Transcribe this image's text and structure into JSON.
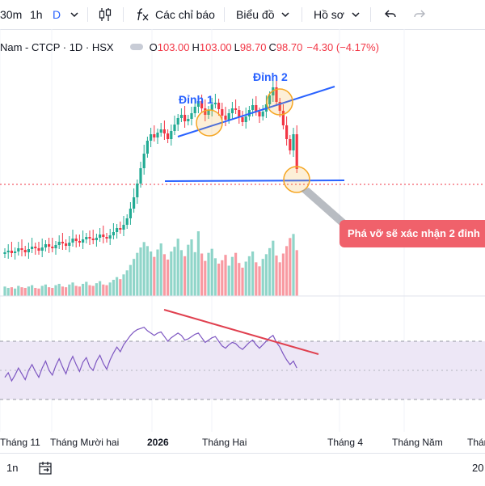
{
  "toolbar": {
    "intervals": [
      "30m",
      "1h",
      "D"
    ],
    "indicators_label": "Các chỉ báo",
    "chart_type_label": "Biểu đồ",
    "profile_label": "Hồ sơ"
  },
  "legend": {
    "symbol": "Nam - CTCP · 1D · HSX",
    "open_key": "O",
    "open": "103.00",
    "high_key": "H",
    "high": "103.00",
    "low_key": "L",
    "low": "98.70",
    "close_key": "C",
    "close": "98.70",
    "change": "−4.30 (−4.17%)"
  },
  "annotations": {
    "peak1": "Đỉnh 1",
    "peak2": "Đỉnh 2",
    "callout": "Phá vỡ sẽ xác nhận 2 đỉnh"
  },
  "timescale": [
    "Tháng 11",
    "Tháng Mười hai",
    "2026",
    "Tháng Hai",
    "Tháng 4",
    "Tháng Năm",
    "Tháng"
  ],
  "bottombar": {
    "range": "1n",
    "right_text": "20"
  },
  "colors": {
    "up": "#22ab94",
    "down": "#f23645",
    "trend": "#2962ff",
    "divergence": "#e0404f",
    "rsi": "#7e57c2",
    "rsi_band": "#ede7f6",
    "peak_circle": "#f5a623"
  },
  "chart_data": {
    "type": "candlestick",
    "series": [
      {
        "name": "price",
        "o": [
          88.2,
          88.4,
          88.6,
          88.3,
          88.5,
          88.9,
          88.7,
          88.4,
          88.8,
          89.1,
          88.9,
          88.6,
          89.0,
          89.4,
          89.1,
          88.9,
          89.3,
          89.7,
          89.5,
          89.2,
          89.6,
          90.1,
          89.8,
          89.6,
          90.0,
          90.3,
          90.1,
          89.9,
          90.2,
          90.6,
          90.3,
          90.1,
          90.5,
          90.9,
          91.4,
          91.2,
          91.8,
          92.6,
          93.8,
          95.2,
          96.9,
          98.8,
          100.6,
          102.2,
          103.0,
          102.6,
          103.2,
          103.6,
          103.1,
          102.4,
          103.4,
          104.2,
          105.0,
          105.4,
          104.6,
          104.9,
          105.6,
          106.4,
          107.1,
          106.2,
          105.4,
          106.0,
          106.7,
          106.9,
          106.1,
          105.3,
          104.8,
          105.6,
          106.2,
          106.0,
          105.1,
          104.5,
          105.2,
          106.0,
          106.6,
          105.8,
          105.2,
          105.8,
          106.7,
          107.8,
          108.8,
          107.0,
          105.9,
          104.1,
          102.4,
          101.0,
          103.0
        ],
        "c": [
          88.4,
          88.6,
          88.3,
          88.5,
          88.9,
          88.7,
          88.4,
          88.8,
          89.1,
          88.9,
          88.6,
          89.0,
          89.4,
          89.1,
          88.9,
          89.3,
          89.7,
          89.5,
          89.2,
          89.6,
          90.1,
          89.8,
          89.6,
          90.0,
          90.3,
          90.1,
          89.9,
          90.2,
          90.6,
          90.3,
          90.1,
          90.5,
          90.9,
          91.4,
          91.2,
          91.8,
          92.6,
          93.8,
          95.2,
          96.9,
          98.8,
          100.6,
          102.2,
          103.0,
          102.6,
          103.2,
          103.6,
          103.1,
          102.4,
          103.4,
          104.2,
          105.0,
          105.4,
          104.6,
          104.9,
          105.6,
          106.4,
          107.1,
          106.2,
          105.4,
          106.0,
          106.7,
          106.9,
          106.1,
          105.3,
          104.8,
          105.6,
          106.2,
          106.0,
          105.1,
          104.5,
          105.2,
          106.0,
          106.6,
          105.8,
          105.2,
          105.8,
          106.7,
          107.8,
          108.8,
          107.0,
          105.9,
          104.1,
          102.4,
          101.0,
          103.0,
          98.7
        ]
      },
      {
        "name": "volume",
        "values": [
          1.4,
          1.2,
          1.3,
          1.1,
          1.5,
          1.3,
          1.2,
          1.4,
          1.6,
          1.2,
          1.1,
          1.5,
          1.7,
          1.3,
          1.2,
          1.6,
          1.8,
          1.4,
          1.3,
          1.7,
          2.0,
          1.5,
          1.4,
          1.8,
          2.1,
          1.6,
          1.5,
          1.9,
          2.2,
          1.7,
          1.6,
          2.0,
          2.4,
          2.8,
          2.5,
          3.2,
          3.8,
          4.6,
          5.5,
          6.4,
          7.2,
          8.0,
          7.4,
          6.6,
          5.8,
          6.9,
          7.8,
          6.2,
          5.4,
          6.6,
          7.3,
          8.5,
          6.8,
          5.9,
          7.6,
          8.4,
          6.5,
          9.6,
          6.3,
          5.2,
          6.4,
          7.0,
          5.6,
          4.8,
          5.3,
          6.1,
          4.5,
          5.8,
          6.4,
          4.9,
          4.2,
          5.1,
          5.9,
          6.6,
          5.0,
          4.4,
          5.5,
          6.2,
          7.1,
          8.2,
          6.0,
          5.0,
          6.3,
          7.4,
          8.6,
          9.2,
          6.8
        ]
      },
      {
        "name": "rsi",
        "values": [
          44,
          48,
          41,
          46,
          52,
          47,
          42,
          50,
          55,
          49,
          44,
          52,
          58,
          50,
          46,
          54,
          60,
          53,
          47,
          56,
          62,
          55,
          49,
          57,
          61,
          53,
          50,
          58,
          63,
          56,
          51,
          59,
          65,
          70,
          66,
          72,
          76,
          80,
          83,
          85,
          86,
          87,
          84,
          82,
          80,
          82,
          83,
          79,
          75,
          78,
          80,
          82,
          80,
          76,
          77,
          79,
          81,
          82,
          78,
          74,
          76,
          78,
          79,
          75,
          71,
          69,
          72,
          74,
          73,
          70,
          68,
          71,
          74,
          76,
          72,
          69,
          72,
          75,
          78,
          80,
          74,
          70,
          64,
          59,
          55,
          58,
          52
        ]
      }
    ]
  }
}
